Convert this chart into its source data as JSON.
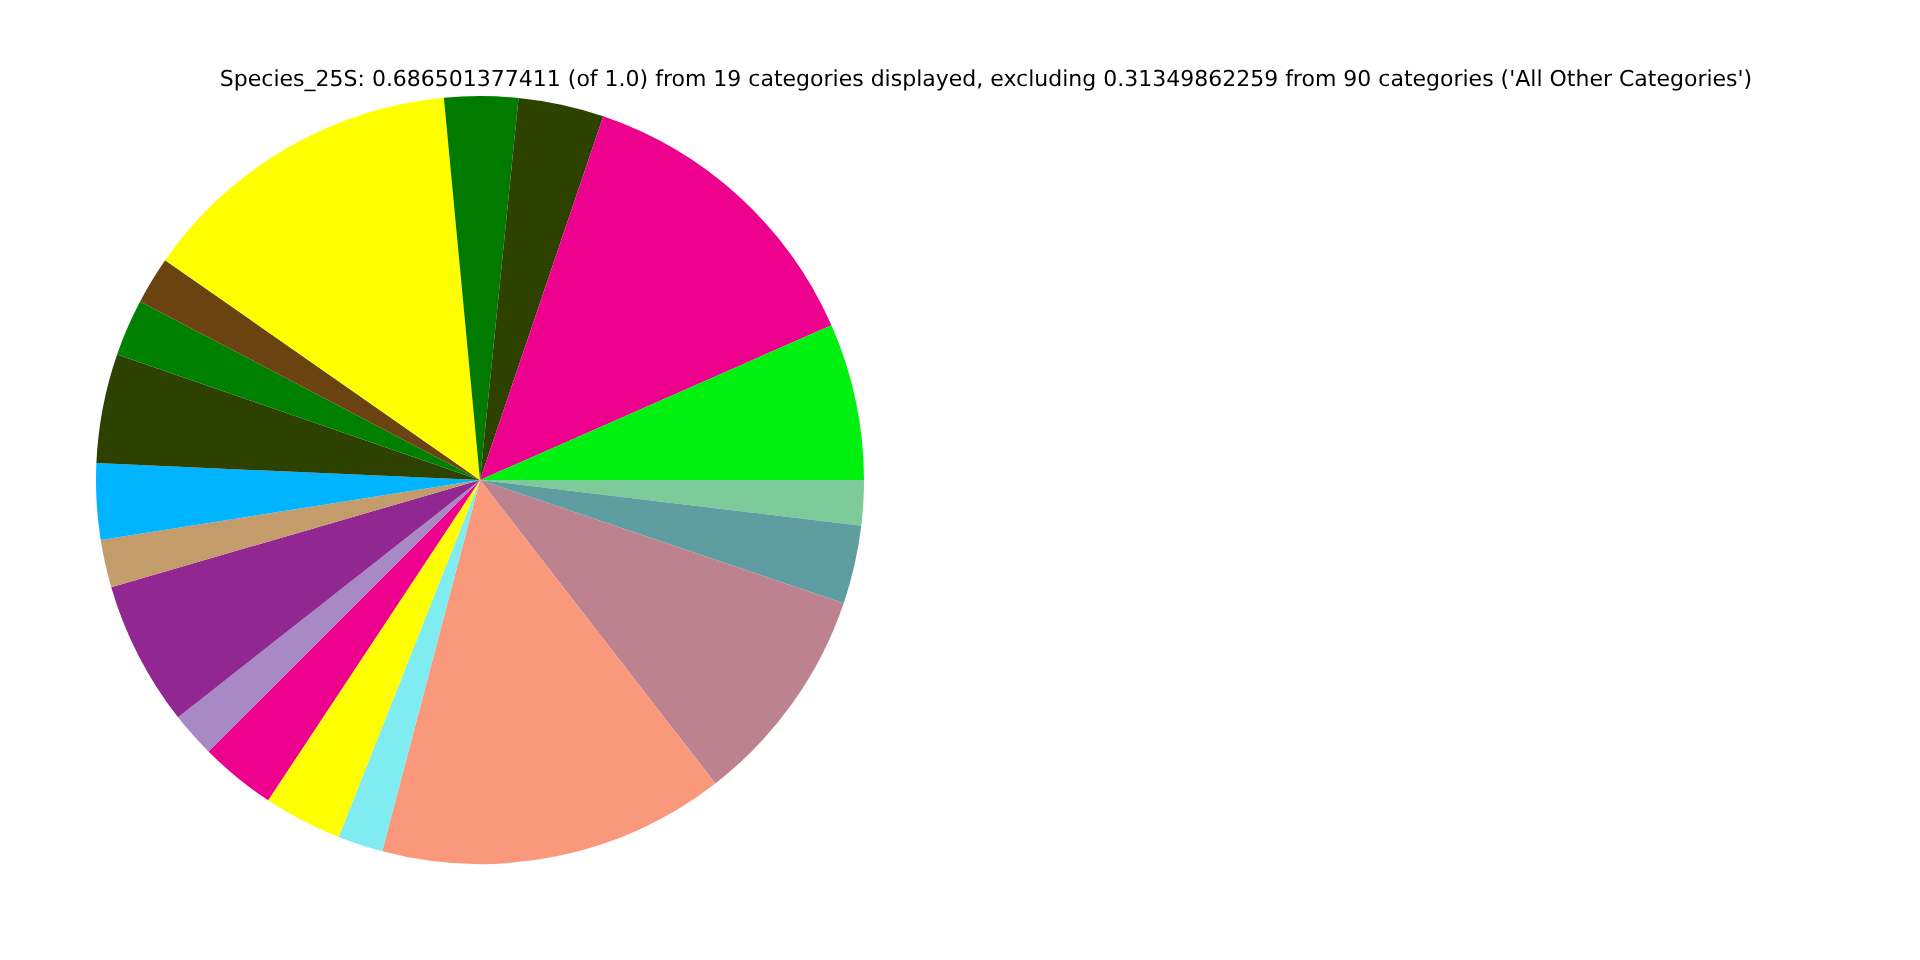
{
  "chart_data": {
    "type": "pie",
    "title": "Species_25S: 0.686501377411 (of 1.0) from 19 categories displayed, excluding 0.31349862259 from 90 categories ('All Other Categories')",
    "categories": [
      null,
      null,
      null,
      null,
      null,
      null,
      null,
      null,
      null,
      null,
      null,
      null,
      null,
      null,
      null,
      null,
      null,
      null,
      null
    ],
    "values": [
      1.9,
      3.3,
      9.3,
      14.6,
      1.9,
      3.3,
      3.2,
      1.9,
      6.1,
      2.0,
      3.2,
      4.6,
      2.4,
      2.0,
      13.8,
      3.1,
      3.6,
      13.2,
      6.6
    ],
    "colors": [
      "#7ccb98",
      "#5f9ea0",
      "#bc8290",
      "#f9987a",
      "#7fecf2",
      "#ffff00",
      "#ee008e",
      "#a889c5",
      "#912790",
      "#c49c6b",
      "#00b4ff",
      "#2d4200",
      "#008000",
      "#6b4311",
      "#ffff00",
      "#007b00",
      "#2e4200",
      "#ee008e",
      "#00f010"
    ],
    "legend": false
  }
}
